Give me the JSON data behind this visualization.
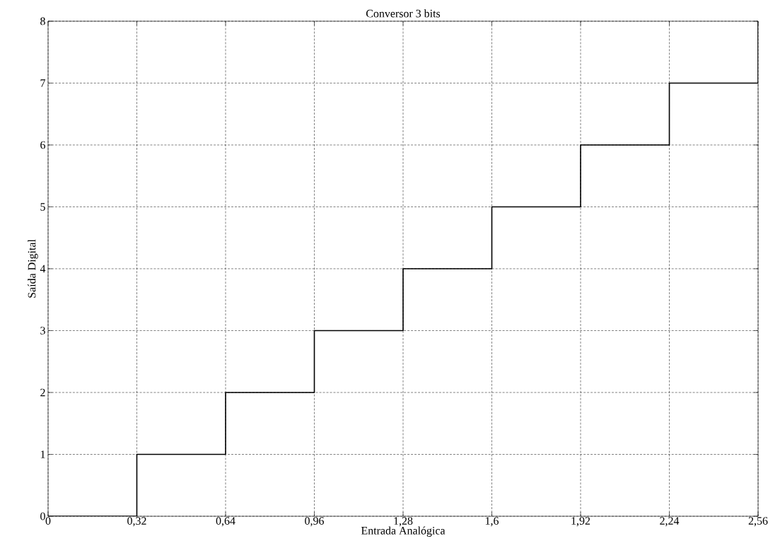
{
  "chart_data": {
    "type": "step",
    "title": "Conversor 3 bits",
    "xlabel": "Entrada Analógica",
    "ylabel": "Saída Digital",
    "x": [
      0,
      0.32,
      0.64,
      0.96,
      1.28,
      1.6,
      1.92,
      2.24,
      2.56
    ],
    "values": [
      0,
      1,
      2,
      3,
      4,
      5,
      6,
      7,
      8
    ],
    "color": "#000000",
    "line_style": "solid",
    "marker": "none",
    "grid": true,
    "xlim": [
      0,
      2.56
    ],
    "ylim": [
      0,
      8
    ],
    "xticks": [
      0,
      {
        "value": 0.32,
        "label": "0,32"
      },
      {
        "value": 0.64,
        "label": "0,64"
      },
      {
        "value": 0.96,
        "label": "0,96"
      },
      {
        "value": 1.28,
        "label": "1,28"
      },
      {
        "value": 1.6,
        "label": "1,6"
      },
      {
        "value": 1.92,
        "label": "1,92"
      },
      {
        "value": 2.24,
        "label": "2,24"
      },
      {
        "value": 2.56,
        "label": "2,56"
      }
    ],
    "yticks": [
      0,
      1,
      2,
      3,
      4,
      5,
      6,
      7,
      8
    ]
  }
}
